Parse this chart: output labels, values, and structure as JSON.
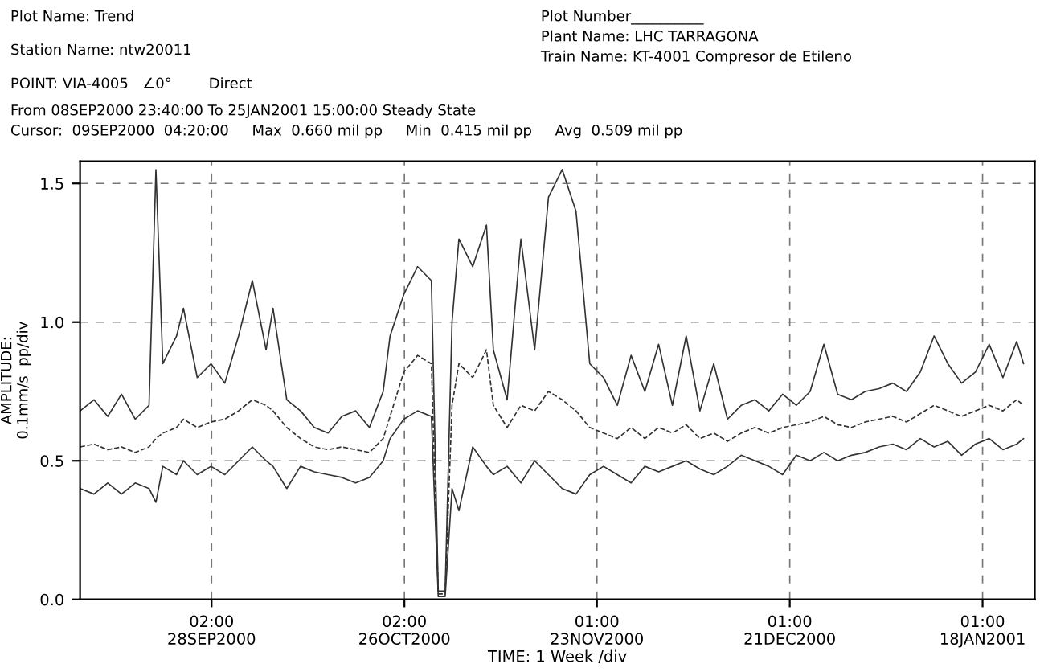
{
  "chart_data": {
    "type": "line",
    "xlabel": "TIME: 1 Week /div",
    "ylabel": "AMPLITUDE:\n0.1mm/s  pp/div",
    "annotations": [
      "Plot Name: Trend",
      "Station Name: ntw20011",
      "POINT: VIA-4005   ∠0°        Direct",
      "From 08SEP2000 23:40:00 To 25JAN2001 15:00:00 Steady State",
      "Cursor:  09SEP2000  04:20:00     Max  0.660 mil pp     Min  0.415 mil pp     Avg  0.509 mil pp",
      "Plot Number__________",
      "Plant Name: LHC TARRAGONA",
      "Train Name: KT-4001 Compresor de Etileno"
    ],
    "x": [
      "2000-09-09",
      "2000-09-11",
      "2000-09-13",
      "2000-09-15",
      "2000-09-17",
      "2000-09-19",
      "2000-09-20",
      "2000-09-21",
      "2000-09-23",
      "2000-09-24",
      "2000-09-26",
      "2000-09-28",
      "2000-09-30",
      "2000-10-02",
      "2000-10-04",
      "2000-10-06",
      "2000-10-07",
      "2000-10-09",
      "2000-10-11",
      "2000-10-13",
      "2000-10-15",
      "2000-10-17",
      "2000-10-19",
      "2000-10-21",
      "2000-10-23",
      "2000-10-24",
      "2000-10-26",
      "2000-10-28",
      "2000-10-30",
      "2000-10-31",
      "2000-11-01",
      "2000-11-02",
      "2000-11-03",
      "2000-11-05",
      "2000-11-07",
      "2000-11-08",
      "2000-11-10",
      "2000-11-12",
      "2000-11-14",
      "2000-11-16",
      "2000-11-18",
      "2000-11-20",
      "2000-11-22",
      "2000-11-24",
      "2000-11-26",
      "2000-11-28",
      "2000-11-30",
      "2000-12-02",
      "2000-12-04",
      "2000-12-06",
      "2000-12-08",
      "2000-12-10",
      "2000-12-12",
      "2000-12-14",
      "2000-12-16",
      "2000-12-18",
      "2000-12-20",
      "2000-12-22",
      "2000-12-24",
      "2000-12-26",
      "2000-12-28",
      "2000-12-30",
      "2001-01-01",
      "2001-01-03",
      "2001-01-05",
      "2001-01-07",
      "2001-01-09",
      "2001-01-11",
      "2001-01-13",
      "2001-01-15",
      "2001-01-17",
      "2001-01-19",
      "2001-01-21",
      "2001-01-23",
      "2001-01-24"
    ],
    "series": [
      {
        "color": "#333333",
        "line_style": "solid",
        "values": [
          0.68,
          0.72,
          0.66,
          0.74,
          0.65,
          0.7,
          1.55,
          0.85,
          0.95,
          1.05,
          0.8,
          0.85,
          0.78,
          0.95,
          1.15,
          0.9,
          1.05,
          0.72,
          0.68,
          0.62,
          0.6,
          0.66,
          0.68,
          0.62,
          0.75,
          0.95,
          1.1,
          1.2,
          1.15,
          0.03,
          0.03,
          1.0,
          1.3,
          1.2,
          1.35,
          0.9,
          0.72,
          1.3,
          0.9,
          1.45,
          1.55,
          1.4,
          0.85,
          0.8,
          0.7,
          0.88,
          0.75,
          0.92,
          0.7,
          0.95,
          0.68,
          0.85,
          0.65,
          0.7,
          0.72,
          0.68,
          0.74,
          0.7,
          0.75,
          0.92,
          0.74,
          0.72,
          0.75,
          0.76,
          0.78,
          0.75,
          0.82,
          0.95,
          0.85,
          0.78,
          0.82,
          0.92,
          0.8,
          0.93,
          0.85
        ]
      },
      {
        "color": "#333333",
        "line_style": "dashed",
        "values": [
          0.55,
          0.56,
          0.54,
          0.55,
          0.53,
          0.55,
          0.58,
          0.6,
          0.62,
          0.65,
          0.62,
          0.64,
          0.65,
          0.68,
          0.72,
          0.7,
          0.68,
          0.62,
          0.58,
          0.55,
          0.54,
          0.55,
          0.54,
          0.53,
          0.58,
          0.66,
          0.82,
          0.88,
          0.85,
          0.02,
          0.02,
          0.7,
          0.85,
          0.8,
          0.9,
          0.7,
          0.62,
          0.7,
          0.68,
          0.75,
          0.72,
          0.68,
          0.62,
          0.6,
          0.58,
          0.62,
          0.58,
          0.62,
          0.6,
          0.63,
          0.58,
          0.6,
          0.57,
          0.6,
          0.62,
          0.6,
          0.62,
          0.63,
          0.64,
          0.66,
          0.63,
          0.62,
          0.64,
          0.65,
          0.66,
          0.64,
          0.67,
          0.7,
          0.68,
          0.66,
          0.68,
          0.7,
          0.68,
          0.72,
          0.7
        ]
      },
      {
        "color": "#333333",
        "line_style": "solid",
        "values": [
          0.4,
          0.38,
          0.42,
          0.38,
          0.42,
          0.4,
          0.35,
          0.48,
          0.45,
          0.5,
          0.45,
          0.48,
          0.45,
          0.5,
          0.55,
          0.5,
          0.48,
          0.4,
          0.48,
          0.46,
          0.45,
          0.44,
          0.42,
          0.44,
          0.5,
          0.58,
          0.65,
          0.68,
          0.66,
          0.01,
          0.01,
          0.4,
          0.32,
          0.55,
          0.48,
          0.45,
          0.48,
          0.42,
          0.5,
          0.45,
          0.4,
          0.38,
          0.45,
          0.48,
          0.45,
          0.42,
          0.48,
          0.46,
          0.48,
          0.5,
          0.47,
          0.45,
          0.48,
          0.52,
          0.5,
          0.48,
          0.45,
          0.52,
          0.5,
          0.53,
          0.5,
          0.52,
          0.53,
          0.55,
          0.56,
          0.54,
          0.58,
          0.55,
          0.57,
          0.52,
          0.56,
          0.58,
          0.54,
          0.56,
          0.58
        ]
      }
    ],
    "xlim": [
      "2000-09-08T23:40",
      "2001-01-25T15:00"
    ],
    "xticks": [
      {
        "value": "2000-09-28T02:00",
        "label": "02:00\n28SEP2000"
      },
      {
        "value": "2000-10-26T02:00",
        "label": "02:00\n26OCT2000"
      },
      {
        "value": "2000-11-23T01:00",
        "label": "01:00\n23NOV2000"
      },
      {
        "value": "2000-12-21T01:00",
        "label": "01:00\n21DEC2000"
      },
      {
        "value": "2001-01-18T01:00",
        "label": "01:00\n18JAN2001"
      }
    ],
    "ylim": [
      0,
      1.58
    ],
    "yticks": [
      {
        "value": 0,
        "label": "0.0"
      },
      {
        "value": 0.5,
        "label": "0.5"
      },
      {
        "value": 1.0,
        "label": "1.0"
      },
      {
        "value": 1.5,
        "label": "1.5"
      }
    ],
    "grid": true,
    "legend": false
  }
}
